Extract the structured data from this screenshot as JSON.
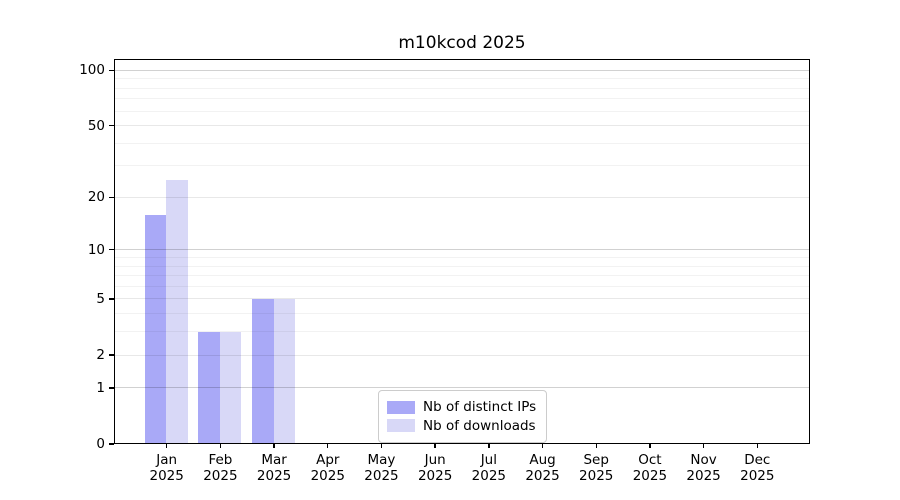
{
  "chart_data": {
    "type": "bar",
    "title": "m10kcod 2025",
    "year_label": "2025",
    "months": [
      "Jan",
      "Feb",
      "Mar",
      "Apr",
      "May",
      "Jun",
      "Jul",
      "Aug",
      "Sep",
      "Oct",
      "Nov",
      "Dec"
    ],
    "series": [
      {
        "name": "Nb of distinct IPs",
        "color": "#a9a9f7",
        "values": [
          16,
          3,
          5,
          0,
          0,
          0,
          0,
          0,
          0,
          0,
          0,
          0
        ]
      },
      {
        "name": "Nb of downloads",
        "color": "#d8d8f7",
        "values": [
          25,
          3,
          5,
          0,
          0,
          0,
          0,
          0,
          0,
          0,
          0,
          0
        ]
      }
    ],
    "yscale": "log1p",
    "ylim": [
      0,
      115
    ],
    "yticks": [
      0,
      1,
      2,
      5,
      10,
      20,
      50,
      100
    ],
    "yticks_emphasis": [
      1,
      10,
      100
    ],
    "yticks_minor": [
      3,
      4,
      6,
      7,
      8,
      9,
      30,
      40,
      60,
      70,
      80,
      90
    ],
    "grid": true,
    "legend_position": "lower center",
    "colors": {
      "background": "#ffffff",
      "axis": "#000000",
      "grid_major_emphasis": "rgba(0,0,0,0.18)",
      "grid_major": "rgba(0,0,0,0.09)",
      "grid_minor": "rgba(0,0,0,0.05)",
      "legend_border": "#cccccc"
    }
  }
}
